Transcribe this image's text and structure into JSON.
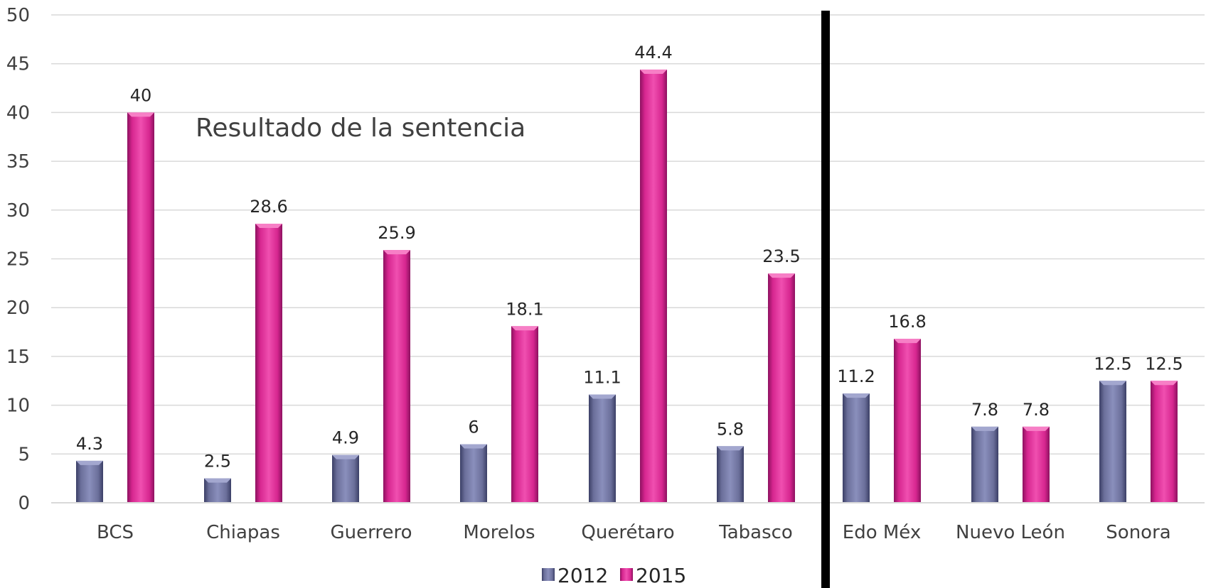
{
  "chart_data": {
    "type": "bar",
    "title": "Resultado de la sentencia",
    "categories": [
      "BCS",
      "Chiapas",
      "Guerrero",
      "Morelos",
      "Querétaro",
      "Tabasco",
      "Edo Méx",
      "Nuevo León",
      "Sonora"
    ],
    "series": [
      {
        "name": "2012",
        "values": [
          4.3,
          2.5,
          4.9,
          6,
          11.1,
          5.8,
          11.2,
          7.8,
          12.5
        ],
        "color": "#6b6f9a"
      },
      {
        "name": "2015",
        "values": [
          40,
          28.6,
          25.9,
          18.1,
          44.4,
          23.5,
          16.8,
          7.8,
          12.5
        ],
        "color": "#d6268f"
      }
    ],
    "data_labels": {
      "2012": [
        "4.3",
        "2.5",
        "4.9",
        "6",
        "11.1",
        "5.8",
        "11.2",
        "7.8",
        "12.5"
      ],
      "2015": [
        "40",
        "28.6",
        "25.9",
        "18.1",
        "44.4",
        "23.5",
        "16.8",
        "7.8",
        "12.5"
      ]
    },
    "ylim": [
      0,
      50
    ],
    "yticks": [
      0,
      5,
      10,
      15,
      20,
      25,
      30,
      35,
      40,
      45,
      50
    ],
    "grid": true,
    "legend": "bottom-center",
    "separator_after_category": "Tabasco",
    "separator_color": "#000000"
  }
}
